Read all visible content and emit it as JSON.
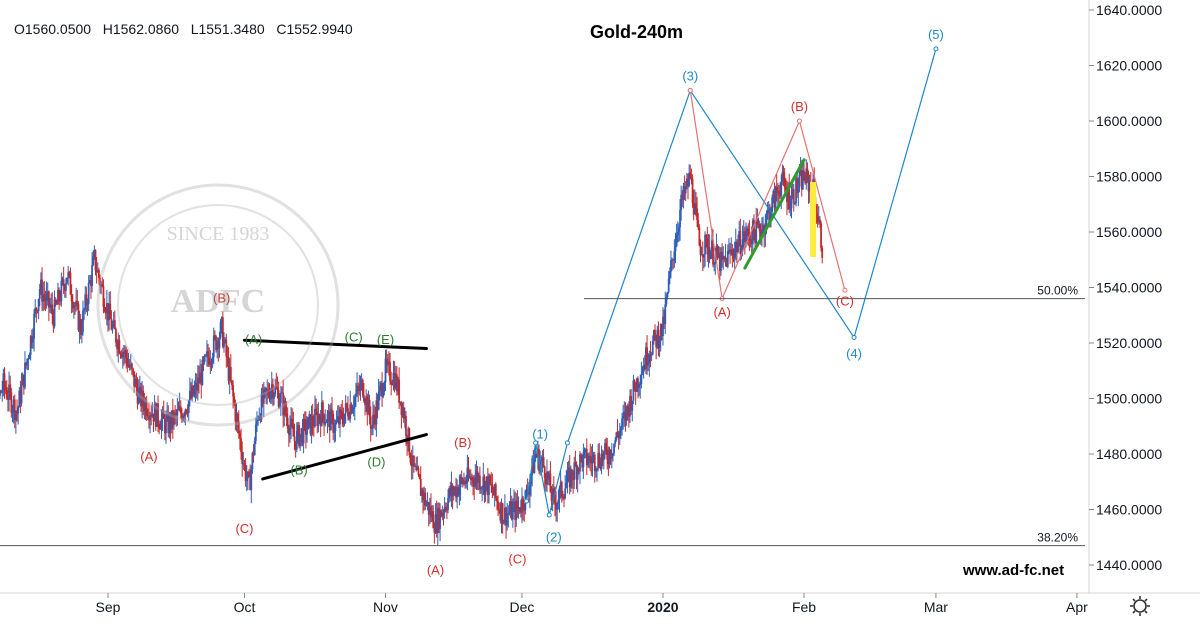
{
  "header": {
    "ohlc_text": "O1560.0500   H1562.0860   L1551.3480   C1552.9940"
  },
  "watermark": {
    "text_top": "SINCE 1983",
    "text_mid": "ADFC"
  },
  "footer": {
    "site": "www.ad-fc.net"
  },
  "settings_icon": "gear-icon",
  "chart_data": {
    "type": "candlestick",
    "title": "Gold-240m",
    "ylim": [
      1432,
      1644
    ],
    "y_ticks": [
      {
        "value": 1640,
        "label": "1640.0000"
      },
      {
        "value": 1620,
        "label": "1620.0000"
      },
      {
        "value": 1600,
        "label": "1600.0000"
      },
      {
        "value": 1580,
        "label": "1580.0000"
      },
      {
        "value": 1560,
        "label": "1560.0000"
      },
      {
        "value": 1540,
        "label": "1540.0000"
      },
      {
        "value": 1520,
        "label": "1520.0000"
      },
      {
        "value": 1500,
        "label": "1500.0000"
      },
      {
        "value": 1480,
        "label": "1480.0000"
      },
      {
        "value": 1460,
        "label": "1460.0000"
      },
      {
        "value": 1440,
        "label": "1440.0000"
      }
    ],
    "x_ticks": [
      {
        "date": "2019-09-01",
        "label": "Sep"
      },
      {
        "date": "2019-10-01",
        "label": "Oct"
      },
      {
        "date": "2019-11-01",
        "label": "Nov"
      },
      {
        "date": "2019-12-01",
        "label": "Dec"
      },
      {
        "date": "2020-01-01",
        "label": "2020"
      },
      {
        "date": "2020-02-01",
        "label": "Feb"
      },
      {
        "date": "2020-03-01",
        "label": "Mar"
      },
      {
        "date": "2020-04-01",
        "label": "Apr"
      }
    ],
    "price_path": [
      [
        "2019-08-04",
        1500
      ],
      [
        "2019-08-06",
        1490
      ],
      [
        "2019-08-09",
        1505
      ],
      [
        "2019-08-12",
        1495
      ],
      [
        "2019-08-14",
        1512
      ],
      [
        "2019-08-17",
        1540
      ],
      [
        "2019-08-20",
        1530
      ],
      [
        "2019-08-23",
        1545
      ],
      [
        "2019-08-26",
        1525
      ],
      [
        "2019-08-29",
        1550
      ],
      [
        "2019-09-02",
        1525
      ],
      [
        "2019-09-05",
        1515
      ],
      [
        "2019-09-08",
        1500
      ],
      [
        "2019-09-11",
        1495
      ],
      [
        "2019-09-14",
        1490
      ],
      [
        "2019-09-17",
        1495
      ],
      [
        "2019-09-20",
        1502
      ],
      [
        "2019-09-23",
        1515
      ],
      [
        "2019-09-26",
        1525
      ],
      [
        "2019-09-28",
        1505
      ],
      [
        "2019-10-01",
        1475
      ],
      [
        "2019-10-02",
        1468
      ],
      [
        "2019-10-04",
        1495
      ],
      [
        "2019-10-07",
        1505
      ],
      [
        "2019-10-09",
        1500
      ],
      [
        "2019-10-12",
        1485
      ],
      [
        "2019-10-15",
        1490
      ],
      [
        "2019-10-18",
        1495
      ],
      [
        "2019-10-21",
        1490
      ],
      [
        "2019-10-24",
        1497
      ],
      [
        "2019-10-27",
        1505
      ],
      [
        "2019-10-29",
        1490
      ],
      [
        "2019-11-01",
        1510
      ],
      [
        "2019-11-03",
        1508
      ],
      [
        "2019-11-05",
        1495
      ],
      [
        "2019-11-07",
        1475
      ],
      [
        "2019-11-10",
        1462
      ],
      [
        "2019-11-12",
        1455
      ],
      [
        "2019-11-15",
        1465
      ],
      [
        "2019-11-18",
        1470
      ],
      [
        "2019-11-21",
        1472
      ],
      [
        "2019-11-24",
        1468
      ],
      [
        "2019-11-27",
        1458
      ],
      [
        "2019-11-30",
        1460
      ],
      [
        "2019-12-02",
        1465
      ],
      [
        "2019-12-04",
        1480
      ],
      [
        "2019-12-06",
        1475
      ],
      [
        "2019-12-08",
        1462
      ],
      [
        "2019-12-11",
        1470
      ],
      [
        "2019-12-14",
        1478
      ],
      [
        "2019-12-17",
        1478
      ],
      [
        "2019-12-20",
        1480
      ],
      [
        "2019-12-23",
        1490
      ],
      [
        "2019-12-26",
        1505
      ],
      [
        "2019-12-29",
        1518
      ],
      [
        "2020-01-01",
        1525
      ],
      [
        "2020-01-03",
        1550
      ],
      [
        "2020-01-05",
        1570
      ],
      [
        "2020-01-07",
        1580
      ],
      [
        "2020-01-09",
        1555
      ],
      [
        "2020-01-11",
        1555
      ],
      [
        "2020-01-14",
        1548
      ],
      [
        "2020-01-17",
        1555
      ],
      [
        "2020-01-19",
        1558
      ],
      [
        "2020-01-21",
        1560
      ],
      [
        "2020-01-23",
        1562
      ],
      [
        "2020-01-25",
        1570
      ],
      [
        "2020-01-27",
        1578
      ],
      [
        "2020-01-29",
        1572
      ],
      [
        "2020-02-01",
        1580
      ],
      [
        "2020-02-03",
        1575
      ],
      [
        "2020-02-05",
        1555
      ]
    ],
    "waves": [
      {
        "label": "(A)",
        "date": "2019-09-10",
        "value": 1479,
        "color": "#d32f2f"
      },
      {
        "label": "(B)",
        "date": "2019-09-26",
        "value": 1536,
        "color": "#d32f2f"
      },
      {
        "label": "(C)",
        "date": "2019-10-01",
        "value": 1453,
        "color": "#d32f2f"
      },
      {
        "label": "(A)",
        "date": "2019-10-03",
        "value": 1521,
        "color": "#2e7d32"
      },
      {
        "label": "(B)",
        "date": "2019-10-13",
        "value": 1474,
        "color": "#2e7d32"
      },
      {
        "label": "(C)",
        "date": "2019-10-25",
        "value": 1522,
        "color": "#2e7d32"
      },
      {
        "label": "(D)",
        "date": "2019-10-30",
        "value": 1477,
        "color": "#2e7d32"
      },
      {
        "label": "(E)",
        "date": "2019-11-01",
        "value": 1521,
        "color": "#2e7d32"
      },
      {
        "label": "(A)",
        "date": "2019-11-12",
        "value": 1438,
        "color": "#d32f2f"
      },
      {
        "label": "(B)",
        "date": "2019-11-18",
        "value": 1484,
        "color": "#d32f2f"
      },
      {
        "label": "(C)",
        "date": "2019-11-30",
        "value": 1442,
        "color": "#d32f2f"
      },
      {
        "label": "(1)",
        "date": "2019-12-05",
        "value": 1487,
        "color": "#1e88c7"
      },
      {
        "label": "(2)",
        "date": "2019-12-08",
        "value": 1450,
        "color": "#1e88c7"
      },
      {
        "label": "(3)",
        "date": "2020-01-07",
        "value": 1616,
        "color": "#1e88c7"
      },
      {
        "label": "(A)",
        "date": "2020-01-14",
        "value": 1531,
        "color": "#d32f2f"
      },
      {
        "label": "(B)",
        "date": "2020-01-31",
        "value": 1605,
        "color": "#d32f2f"
      },
      {
        "label": "(C)",
        "date": "2020-02-10",
        "value": 1535,
        "color": "#d32f2f"
      },
      {
        "label": "(4)",
        "date": "2020-02-12",
        "value": 1516,
        "color": "#1e88c7"
      },
      {
        "label": "(5)",
        "date": "2020-03-01",
        "value": 1631,
        "color": "#1e88c7"
      }
    ],
    "blue_projection": [
      [
        "2019-12-02",
        1463
      ],
      [
        "2019-12-04",
        1484
      ],
      [
        "2019-12-07",
        1458
      ],
      [
        "2019-12-11",
        1484
      ],
      [
        "2020-01-07",
        1611
      ],
      [
        "2020-02-12",
        1522
      ],
      [
        "2020-03-01",
        1626
      ]
    ],
    "red_projection": [
      [
        "2020-01-07",
        1611
      ],
      [
        "2020-01-14",
        1536
      ],
      [
        "2020-01-31",
        1600
      ],
      [
        "2020-02-10",
        1539
      ]
    ],
    "trendlines": [
      {
        "from": [
          "2019-10-01",
          1521
        ],
        "to": [
          "2019-11-10",
          1518
        ],
        "color": "#000000"
      },
      {
        "from": [
          "2019-10-05",
          1471
        ],
        "to": [
          "2019-11-10",
          1487
        ],
        "color": "#000000"
      },
      {
        "from": [
          "2020-01-19",
          1547
        ],
        "to": [
          "2020-02-01",
          1586
        ],
        "color": "#2e9b2e"
      }
    ],
    "highlight": {
      "from": [
        "2020-02-03",
        1578
      ],
      "to": [
        "2020-02-05",
        1551
      ],
      "color": "#ffeb3b"
    },
    "fib_levels": [
      {
        "label": "50.00%",
        "value": 1536
      },
      {
        "label": "38.20%",
        "value": 1447
      }
    ],
    "colors": {
      "up": "#2e5fb8",
      "down": "#c62828",
      "blue_wave": "#1e88c7",
      "red_wave": "#d32f2f",
      "green_wave": "#2e7d32"
    }
  }
}
